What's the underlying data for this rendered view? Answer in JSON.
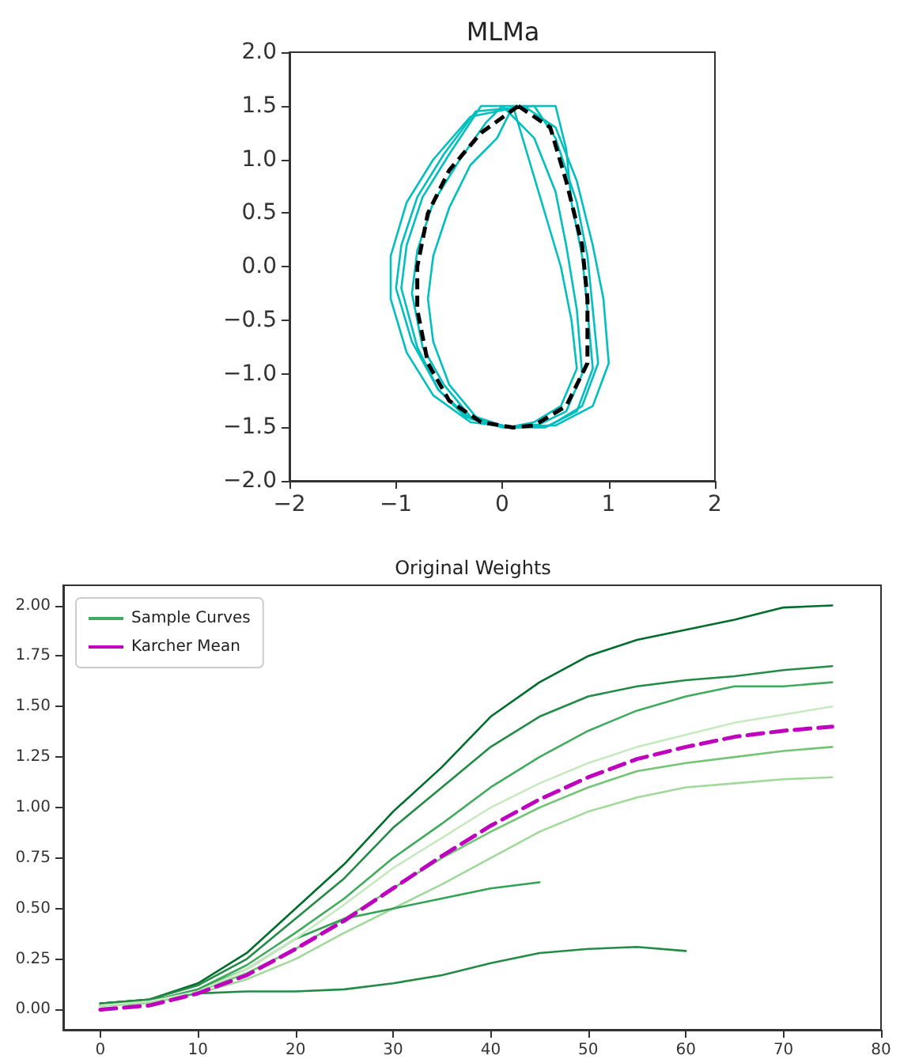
{
  "chart_data": [
    {
      "type": "line",
      "title": "MLMa",
      "xlim": [
        -2,
        2
      ],
      "ylim": [
        -2,
        2
      ],
      "xticks": [
        {
          "value": -2,
          "label": "−2"
        },
        {
          "value": -1,
          "label": "−1"
        },
        0,
        1,
        2
      ],
      "yticks": [
        {
          "value": -2,
          "label": "−2.0"
        },
        {
          "value": -1.5,
          "label": "−1.5"
        },
        {
          "value": -1,
          "label": "−1.0"
        },
        {
          "value": -0.5,
          "label": "−0.5"
        },
        {
          "value": 0,
          "label": "0.0"
        },
        {
          "value": 0.5,
          "label": "0.5"
        },
        {
          "value": 1,
          "label": "1.0"
        },
        {
          "value": 1.5,
          "label": "1.5"
        },
        {
          "value": 2,
          "label": "2.0"
        }
      ],
      "grid": false,
      "legend": false
    },
    {
      "type": "line",
      "title": "Original Weights",
      "xlim": [
        -3.8,
        80
      ],
      "ylim": [
        -0.1,
        2.1
      ],
      "xticks": [
        0,
        10,
        20,
        30,
        40,
        50,
        60,
        70,
        80
      ],
      "yticks": [
        {
          "value": 0,
          "label": "0.00"
        },
        {
          "value": 0.25,
          "label": "0.25"
        },
        {
          "value": 0.5,
          "label": "0.50"
        },
        {
          "value": 0.75,
          "label": "0.75"
        },
        {
          "value": 1,
          "label": "1.00"
        },
        {
          "value": 1.25,
          "label": "1.25"
        },
        {
          "value": 1.5,
          "label": "1.50"
        },
        {
          "value": 1.75,
          "label": "1.75"
        },
        {
          "value": 2,
          "label": "2.00"
        }
      ],
      "grid": false,
      "legend": "top left",
      "x": [
        0,
        5,
        10,
        15,
        20,
        25,
        30,
        35,
        40,
        45,
        50,
        55,
        60,
        65,
        70,
        75
      ],
      "series": [
        {
          "color": "#006d2c",
          "values": [
            0.03,
            0.05,
            0.13,
            0.28,
            0.5,
            0.72,
            0.98,
            1.2,
            1.45,
            1.62,
            1.75,
            1.83,
            1.88,
            1.93,
            1.99,
            2.0
          ]
        },
        {
          "color": "#238b45",
          "values": [
            0.03,
            0.05,
            0.12,
            0.25,
            0.45,
            0.65,
            0.9,
            1.1,
            1.3,
            1.45,
            1.55,
            1.6,
            1.63,
            1.65,
            1.68,
            1.7
          ]
        },
        {
          "name": "Sample Curves",
          "color": "#41ab5d",
          "values": [
            0.02,
            0.04,
            0.1,
            0.22,
            0.38,
            0.55,
            0.75,
            0.92,
            1.1,
            1.25,
            1.38,
            1.48,
            1.55,
            1.6,
            1.6,
            1.62
          ]
        },
        {
          "color": "#74c476",
          "values": [
            0.02,
            0.04,
            0.09,
            0.18,
            0.3,
            0.45,
            0.6,
            0.75,
            0.88,
            1.0,
            1.1,
            1.18,
            1.22,
            1.25,
            1.28,
            1.3
          ]
        },
        {
          "color": "#a1d99b",
          "values": [
            0.02,
            0.03,
            0.08,
            0.15,
            0.25,
            0.38,
            0.5,
            0.62,
            0.75,
            0.88,
            0.98,
            1.05,
            1.1,
            1.12,
            1.14,
            1.15
          ]
        },
        {
          "color": "#31a354",
          "values": [
            0.02,
            0.04,
            0.1,
            0.2,
            0.35,
            0.45,
            0.5,
            0.55,
            0.6,
            0.63,
            null,
            null,
            null,
            null,
            null,
            null
          ]
        },
        {
          "color": "#238b45",
          "values": [
            0.03,
            0.05,
            0.08,
            0.09,
            0.09,
            0.1,
            0.13,
            0.17,
            0.23,
            0.28,
            0.3,
            0.31,
            0.29,
            null,
            null,
            null
          ]
        },
        {
          "color": "#c7e9c0",
          "values": [
            0.02,
            0.04,
            0.09,
            0.2,
            0.35,
            0.52,
            0.7,
            0.85,
            1.0,
            1.12,
            1.22,
            1.3,
            1.36,
            1.42,
            1.46,
            1.5
          ]
        },
        {
          "name": "Karcher Mean",
          "color": "#bf00bf",
          "line_style": "dashed",
          "values": [
            0,
            0.02,
            0.08,
            0.17,
            0.3,
            0.44,
            0.6,
            0.76,
            0.91,
            1.04,
            1.15,
            1.24,
            1.3,
            1.35,
            1.38,
            1.4
          ]
        }
      ]
    }
  ]
}
